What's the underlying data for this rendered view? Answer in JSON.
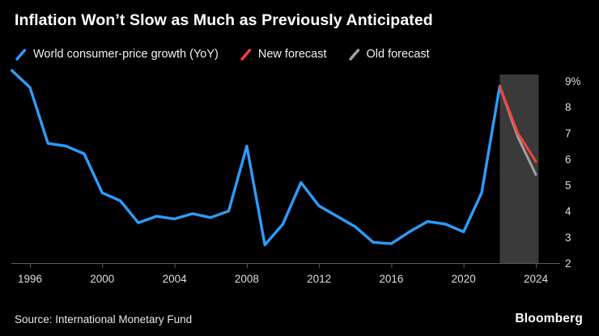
{
  "title": "Inflation Won’t Slow as Much as Previously Anticipated",
  "legend": [
    {
      "label": "World consumer-price growth (YoY)",
      "color": "#2D9CFF"
    },
    {
      "label": "New forecast",
      "color": "#F4433C"
    },
    {
      "label": "Old forecast",
      "color": "#A1A1A1"
    }
  ],
  "footer": {
    "source": "Source: International Monetary Fund",
    "brand": "Bloomberg"
  },
  "chart_data": {
    "type": "line",
    "title": "Inflation Won’t Slow as Much as Previously Anticipated",
    "xlabel": "",
    "ylabel": "",
    "ylim": [
      2,
      9
    ],
    "grid": false,
    "legend_position": "top",
    "x_ticks": [
      1996,
      2000,
      2004,
      2008,
      2012,
      2016,
      2020,
      2024
    ],
    "y_ticks": [
      {
        "v": 2,
        "label": "2"
      },
      {
        "v": 3,
        "label": "3"
      },
      {
        "v": 4,
        "label": "4"
      },
      {
        "v": 5,
        "label": "5"
      },
      {
        "v": 6,
        "label": "6"
      },
      {
        "v": 7,
        "label": "7"
      },
      {
        "v": 8,
        "label": "8"
      },
      {
        "v": 9,
        "label": "9%"
      }
    ],
    "forecast_band": {
      "from": 2022,
      "to": 2024.15
    },
    "series": [
      {
        "id": "world",
        "name": "World consumer-price growth (YoY)",
        "color": "#2D9CFF",
        "width": 3.4,
        "x": [
          1995,
          1996,
          1997,
          1998,
          1999,
          2000,
          2001,
          2002,
          2003,
          2004,
          2005,
          2006,
          2007,
          2008,
          2009,
          2010,
          2011,
          2012,
          2013,
          2014,
          2015,
          2016,
          2017,
          2018,
          2019,
          2020,
          2021,
          2022
        ],
        "values": [
          9.4,
          8.75,
          6.6,
          6.5,
          6.2,
          4.7,
          4.4,
          3.55,
          3.8,
          3.7,
          3.9,
          3.75,
          4.0,
          6.5,
          2.7,
          3.5,
          5.1,
          4.2,
          3.8,
          3.4,
          2.8,
          2.75,
          3.2,
          3.6,
          3.5,
          3.2,
          4.7,
          8.8
        ]
      },
      {
        "id": "old-forecast",
        "name": "Old forecast",
        "color": "#A1A1A1",
        "width": 3,
        "x": [
          2022,
          2023,
          2024
        ],
        "values": [
          8.8,
          6.85,
          5.4
        ]
      },
      {
        "id": "new-forecast",
        "name": "New forecast",
        "color": "#F4433C",
        "width": 3,
        "x": [
          2022,
          2023,
          2024
        ],
        "values": [
          8.8,
          7.0,
          5.9
        ]
      }
    ],
    "colors": {
      "background": "#000000",
      "band": "#3A3A3A",
      "axis": "#5A5A5A",
      "tick_label": "#DEDEDE"
    }
  }
}
